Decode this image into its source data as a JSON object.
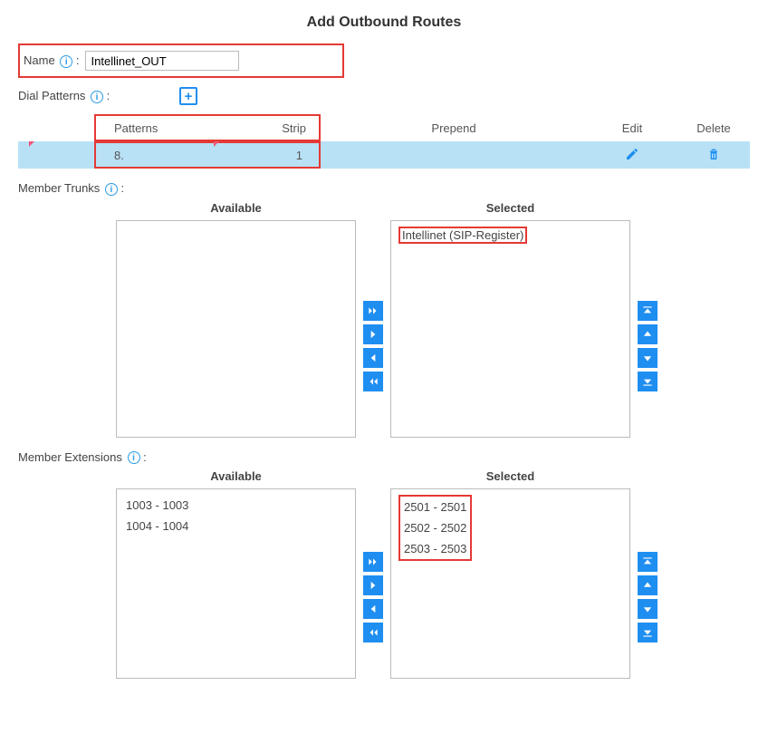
{
  "title": "Add Outbound Routes",
  "name_field": {
    "label": "Name",
    "value": "Intellinet_OUT"
  },
  "dial_patterns": {
    "label": "Dial Patterns",
    "headers": {
      "patterns": "Patterns",
      "strip": "Strip",
      "prepend": "Prepend",
      "edit": "Edit",
      "delete": "Delete"
    },
    "row": {
      "pattern": "8.",
      "strip": "1"
    }
  },
  "member_trunks": {
    "label": "Member Trunks",
    "available_label": "Available",
    "selected_label": "Selected",
    "available": [],
    "selected": [
      "Intellinet (SIP-Register)"
    ]
  },
  "member_extensions": {
    "label": "Member Extensions",
    "available_label": "Available",
    "selected_label": "Selected",
    "available": [
      "1003 - 1003",
      "1004 - 1004"
    ],
    "selected": [
      "2501 - 2501",
      "2502 - 2502",
      "2503 - 2503"
    ]
  },
  "colors": {
    "accent": "#1f8ef1",
    "highlight_row": "#b8e1f5",
    "callout": "#e53935"
  }
}
